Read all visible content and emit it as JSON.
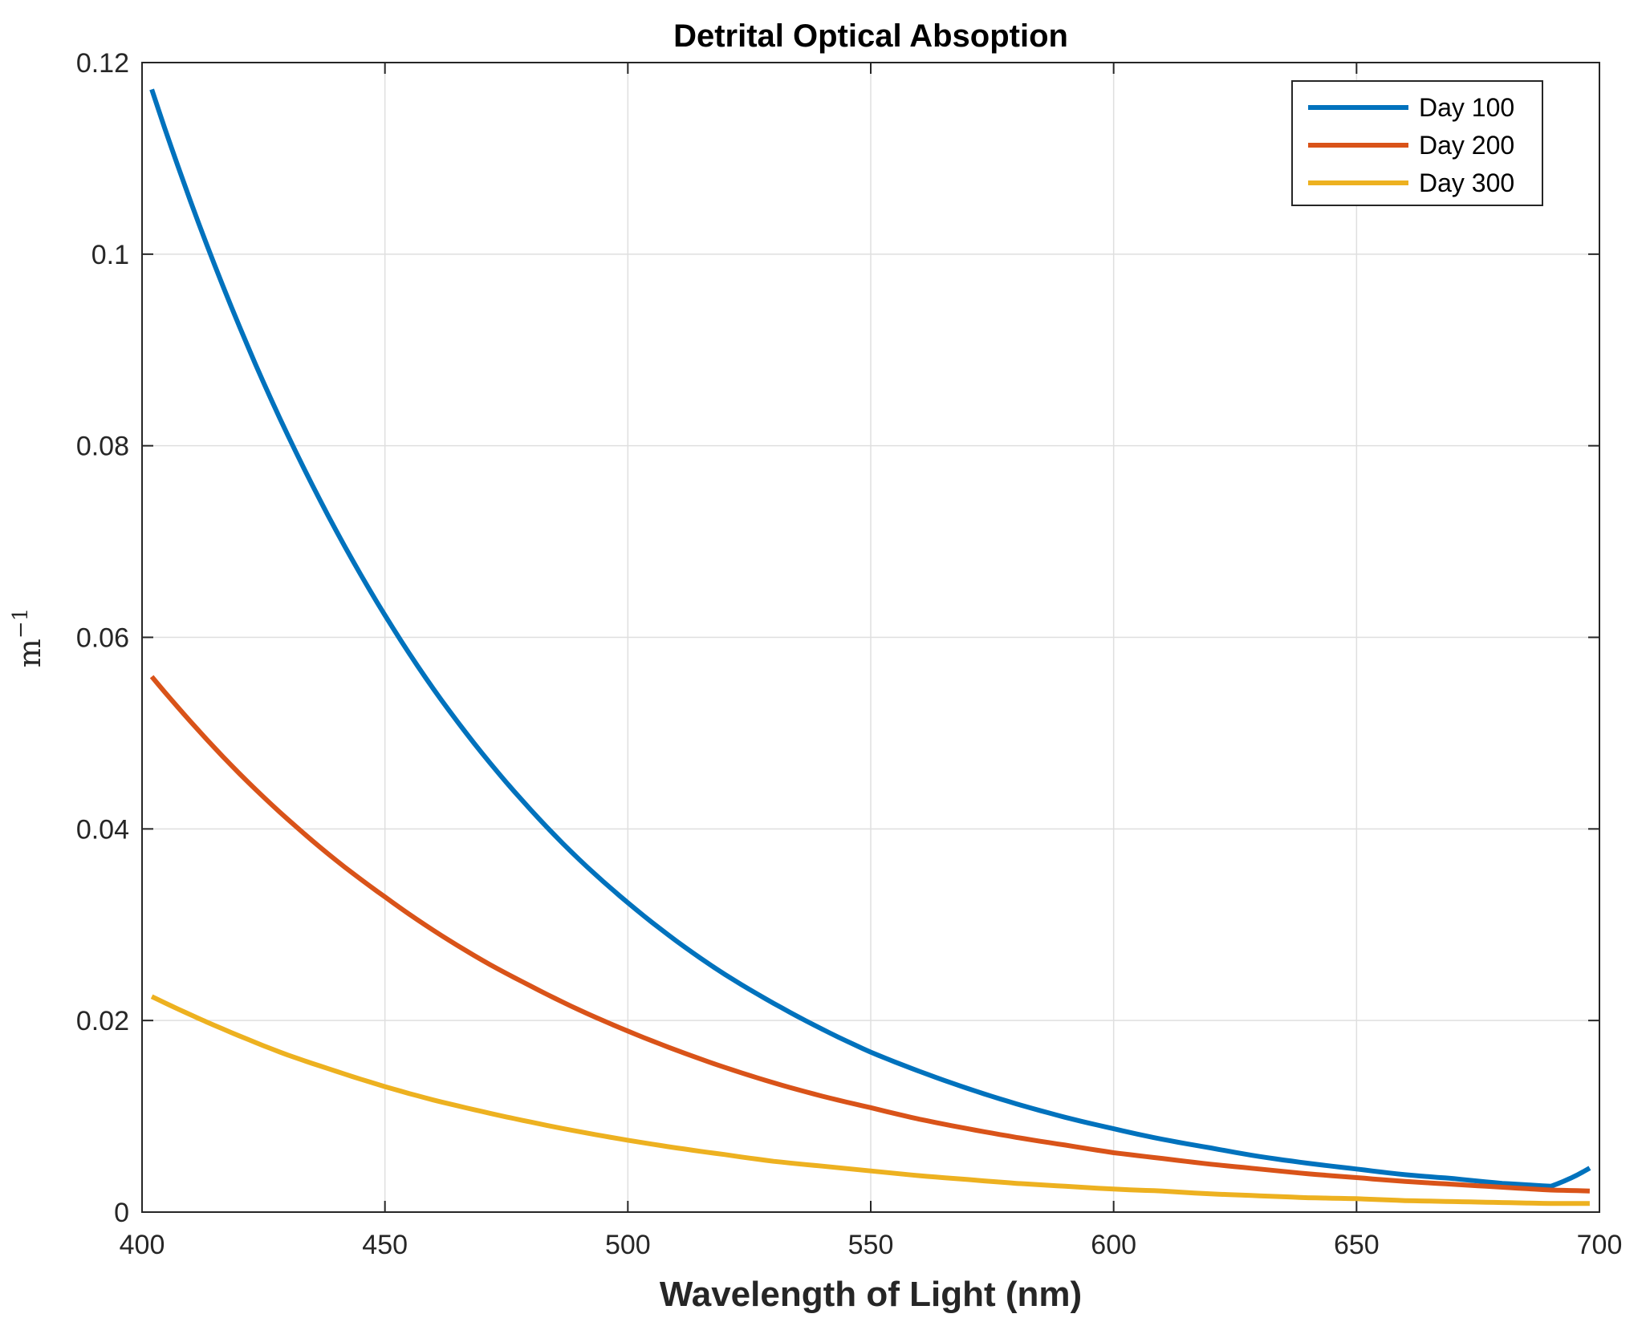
{
  "chart_data": {
    "type": "line",
    "title": "Detrital Optical Absoption",
    "xlabel": "Wavelength of Light (nm)",
    "ylabel_base": "m",
    "ylabel_exponent": "−1",
    "xlim": [
      400,
      700
    ],
    "ylim": [
      0,
      0.12
    ],
    "xticks": [
      400,
      450,
      500,
      550,
      600,
      650,
      700
    ],
    "xtick_labels": [
      "400",
      "450",
      "500",
      "550",
      "600",
      "650",
      "700"
    ],
    "yticks": [
      0,
      0.02,
      0.04,
      0.06,
      0.08,
      0.1,
      0.12
    ],
    "ytick_labels": [
      "0",
      "0.02",
      "0.04",
      "0.06",
      "0.08",
      "0.1",
      "0.12"
    ],
    "grid": true,
    "legend_position": "top-right",
    "x": [
      402,
      410,
      420,
      430,
      440,
      450,
      460,
      470,
      480,
      490,
      500,
      510,
      520,
      530,
      540,
      550,
      560,
      570,
      580,
      590,
      600,
      610,
      620,
      630,
      640,
      650,
      660,
      670,
      680,
      690,
      698
    ],
    "series": [
      {
        "name": "Day 100",
        "color": "#0072BD",
        "values": [
          0.1172,
          0.1055,
          0.0925,
          0.0811,
          0.0711,
          0.0623,
          0.0546,
          0.0479,
          0.042,
          0.0368,
          0.0323,
          0.0283,
          0.0248,
          0.0218,
          0.0191,
          0.0167,
          0.0147,
          0.0129,
          0.0113,
          0.0099,
          0.0087,
          0.0076,
          0.0067,
          0.0058,
          0.0051,
          0.0045,
          0.0039,
          0.0035,
          0.003,
          0.0027,
          0.0046
        ]
      },
      {
        "name": "Day 200",
        "color": "#D95319",
        "values": [
          0.0559,
          0.0512,
          0.0458,
          0.041,
          0.0367,
          0.0329,
          0.0294,
          0.0263,
          0.0236,
          0.0211,
          0.0189,
          0.0169,
          0.0151,
          0.0135,
          0.0121,
          0.0109,
          0.0097,
          0.0087,
          0.0078,
          0.007,
          0.0062,
          0.0056,
          0.005,
          0.0045,
          0.004,
          0.0036,
          0.0032,
          0.0029,
          0.0026,
          0.0023,
          0.0022
        ]
      },
      {
        "name": "Day 300",
        "color": "#EDB120",
        "values": [
          0.0225,
          0.0206,
          0.0184,
          0.0164,
          0.0147,
          0.0131,
          0.0117,
          0.0105,
          0.0094,
          0.0084,
          0.0075,
          0.0067,
          0.006,
          0.0053,
          0.0048,
          0.0043,
          0.0038,
          0.0034,
          0.003,
          0.0027,
          0.0024,
          0.0022,
          0.0019,
          0.0017,
          0.0015,
          0.0014,
          0.0012,
          0.0011,
          0.001,
          0.0009,
          0.0009
        ]
      }
    ]
  }
}
